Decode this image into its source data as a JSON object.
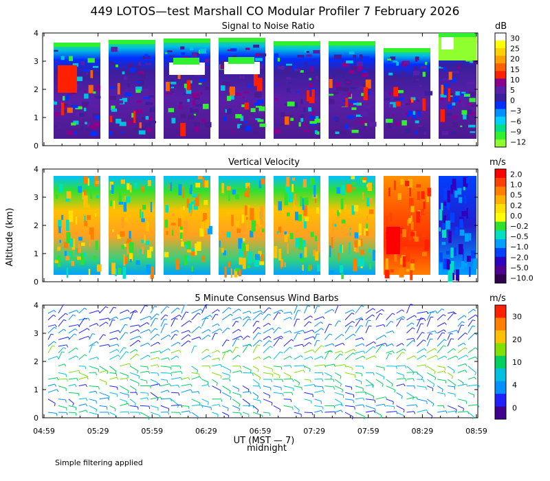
{
  "figure_title": "449 LOTOS—test Marshall CO Modular Profiler  7 February 2026",
  "y_axis_label": "Altitude (km)",
  "x_axis_label": "UT (MST — 7)",
  "x_axis_sublabel": "midnight",
  "footnote": "Simple filtering applied",
  "chart_data": [
    {
      "type": "heatmap",
      "title": "Signal to Noise Ratio",
      "units": "dB",
      "ylabel": "Altitude (km)",
      "ylim": [
        0,
        4
      ],
      "yticks": [
        0,
        1,
        2,
        3,
        4
      ],
      "xticks": [
        "04:59",
        "05:29",
        "05:59",
        "06:29",
        "06:59",
        "07:29",
        "07:59",
        "08:29",
        "08:59"
      ],
      "colorbar_labels": [
        "30",
        "25",
        "20",
        "15",
        "10",
        "5",
        "0",
        "−3",
        "−6",
        "−9",
        "−12"
      ],
      "colorbar_colors": [
        "#ffffff",
        "#ffff00",
        "#ffd000",
        "#ffa000",
        "#ff6000",
        "#ff2000",
        "#8b008b",
        "#5a1fa8",
        "#3c1f9c",
        "#0030ff",
        "#0090ff",
        "#00d0ff",
        "#00e08a",
        "#30f030",
        "#90ff30"
      ]
    },
    {
      "type": "heatmap",
      "title": "Vertical Velocity",
      "units": "m/s",
      "ylabel": "Altitude (km)",
      "ylim": [
        0,
        4
      ],
      "yticks": [
        0,
        1,
        2,
        3,
        4
      ],
      "xticks": [
        "04:59",
        "05:29",
        "05:59",
        "06:29",
        "06:59",
        "07:29",
        "07:59",
        "08:29",
        "08:59"
      ],
      "colorbar_labels": [
        "2.0",
        "1.0",
        "0.5",
        "0.2",
        "0.0",
        "−0.2",
        "−0.5",
        "−1.0",
        "−2.0",
        "−5.0",
        "−10.0"
      ],
      "colorbar_colors": [
        "#ff0000",
        "#ff4000",
        "#ff8000",
        "#ffb000",
        "#ffe000",
        "#ffff00",
        "#30e030",
        "#00e0c0",
        "#00a0ff",
        "#0040ff",
        "#3000c0",
        "#500090",
        "#300050"
      ]
    },
    {
      "type": "wind_barbs",
      "title": "5 Minute Consensus Wind Barbs",
      "units": "m/s",
      "ylabel": "Altitude (km)",
      "ylim": [
        0,
        4
      ],
      "yticks": [
        0,
        1,
        2,
        3,
        4
      ],
      "xticks": [
        "04:59",
        "05:29",
        "05:59",
        "06:29",
        "06:59",
        "07:29",
        "07:59",
        "08:29",
        "08:59"
      ],
      "colorbar_labels": [
        "30",
        "20",
        "10",
        "4",
        "0"
      ],
      "colorbar_colors": [
        "#ff2000",
        "#ff8000",
        "#ffc000",
        "#80e000",
        "#00d060",
        "#00c0e0",
        "#0090ff",
        "#2020ff",
        "#400090"
      ]
    }
  ]
}
